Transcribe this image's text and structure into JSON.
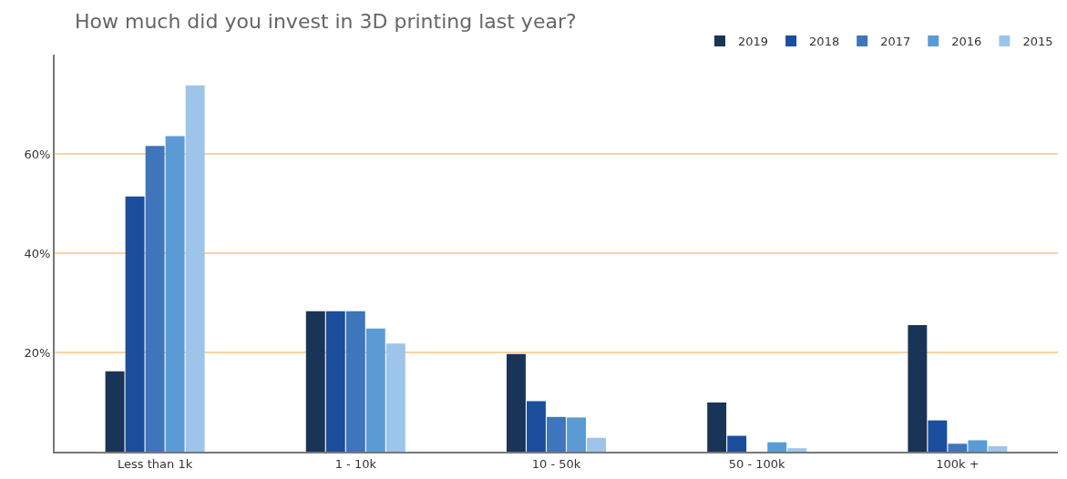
{
  "chart_data": {
    "type": "bar",
    "title": "How much did you invest in 3D printing last year?",
    "categories": [
      "Less than 1k",
      "1 - 10k",
      "10 - 50k",
      "50 - 100k",
      "100k +"
    ],
    "series": [
      {
        "name": "2019",
        "color": "#1a3458",
        "values": [
          16.2,
          28.3,
          19.7,
          9.9,
          25.5
        ]
      },
      {
        "name": "2018",
        "color": "#1b4e9c",
        "values": [
          51.4,
          28.3,
          10.2,
          3.2,
          6.3
        ]
      },
      {
        "name": "2017",
        "color": "#3e75bb",
        "values": [
          61.6,
          28.3,
          7.0,
          null,
          1.6
        ]
      },
      {
        "name": "2016",
        "color": "#5a9bd6",
        "values": [
          63.6,
          24.8,
          6.9,
          1.9,
          2.3
        ]
      },
      {
        "name": "2015",
        "color": "#9dc5ea",
        "values": [
          73.8,
          21.8,
          2.8,
          0.7,
          1.1
        ]
      }
    ],
    "ylim": [
      0,
      80
    ],
    "yticks": [
      {
        "value": 20,
        "label": "20%"
      },
      {
        "value": 40,
        "label": "40%"
      },
      {
        "value": 60,
        "label": "60%"
      }
    ],
    "grid": "y",
    "legend": "top right"
  }
}
